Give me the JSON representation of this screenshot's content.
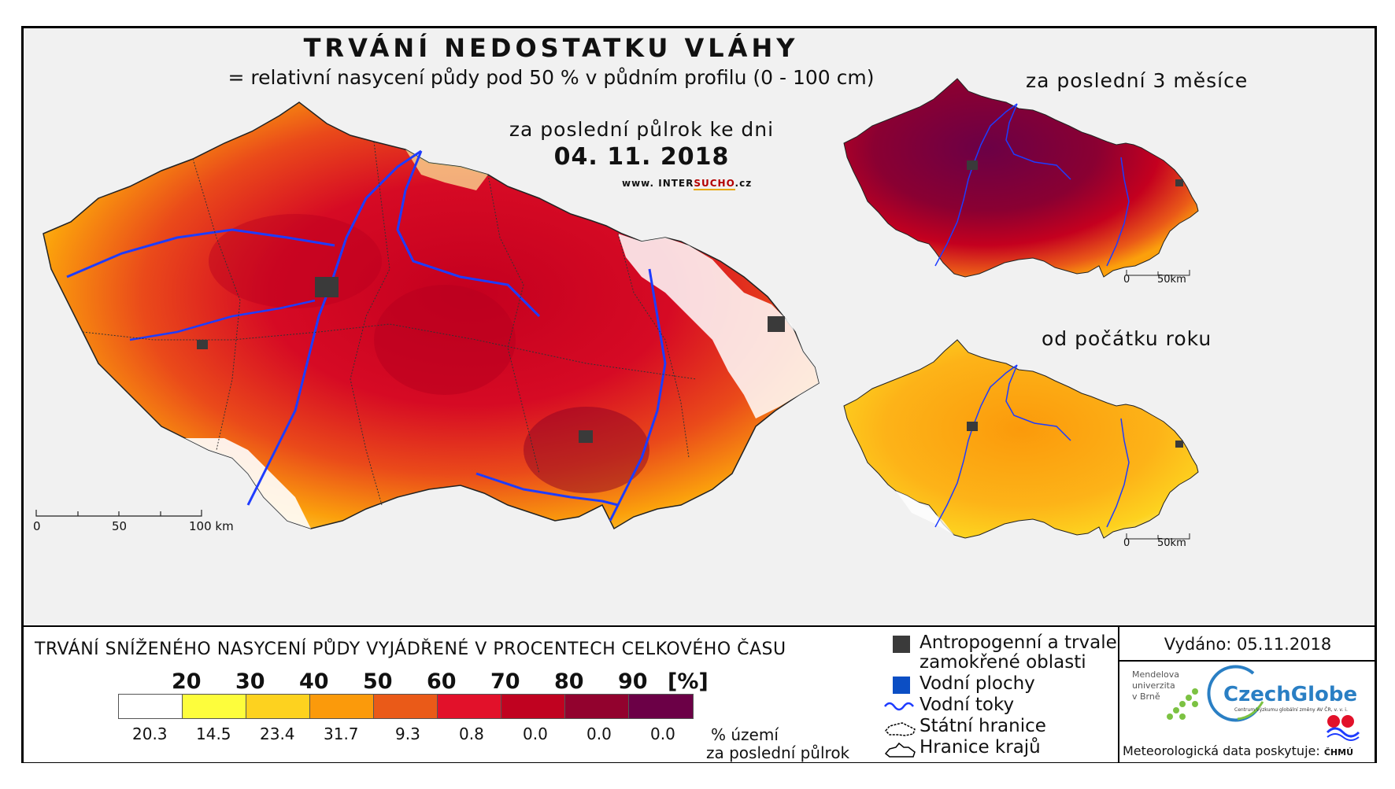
{
  "header": {
    "title": "TRVÁNÍ NEDOSTATKU VLÁHY",
    "subtitle": "= relativní nasycení půdy pod 50 % v půdním profilu (0 - 100 cm)",
    "period": "za poslední půlrok ke dni",
    "date": "04. 11. 2018",
    "website_prefix": "www. INTER",
    "website_highlight": "SUCHO",
    "website_suffix": ".cz"
  },
  "main_map": {
    "scale_labels": [
      "0",
      "50",
      "100 km"
    ]
  },
  "inset_3_months": {
    "title": "za poslední 3 měsíce",
    "scale_labels": [
      "0",
      "50km"
    ]
  },
  "inset_year": {
    "title": "od počátku roku",
    "scale_labels": [
      "0",
      "50km"
    ]
  },
  "legend": {
    "title": "TRVÁNÍ SNÍŽENÉHO NASYCENÍ PŮDY VYJÁDŘENÉ V PROCENTECH CELKOVÉHO ČASU",
    "ticks": [
      "20",
      "30",
      "40",
      "50",
      "60",
      "70",
      "80",
      "90",
      "[%]"
    ],
    "colors": [
      "#ffffff",
      "#fdfd3c",
      "#fdd21f",
      "#fb9a0b",
      "#ea5a18",
      "#e2112a",
      "#c00220",
      "#92022e",
      "#6b0046"
    ],
    "shares": [
      "20.3",
      "14.5",
      "23.4",
      "31.7",
      "9.3",
      "0.8",
      "0.0",
      "0.0",
      "0.0"
    ],
    "area_note_line1": "% území",
    "area_note_line2": "za poslední půlrok"
  },
  "map_key": {
    "items": [
      {
        "label": "Antropogenní a trvale zamokřené oblasti",
        "color": "#3a3a3a",
        "icon": "square-icon"
      },
      {
        "label": "Vodní plochy",
        "color": "#0b4ec4",
        "icon": "square-icon"
      },
      {
        "label": "Vodní toky",
        "color": "#1e3cff",
        "icon": "wave-line-icon"
      },
      {
        "label": "Státní hranice",
        "color": "#000000",
        "icon": "border-outline-icon"
      },
      {
        "label": "Hranice krajů",
        "color": "#000000",
        "icon": "border-outline-icon"
      }
    ],
    "item1_line1": "Antropogenní a trvale",
    "item1_line2": "zamokřené oblasti"
  },
  "credits": {
    "issued": "Vydáno: 05.11.2018",
    "mendel_line1": "Mendelova",
    "mendel_line2": "univerzita",
    "mendel_line3": "v Brně",
    "czechglobe": "CzechGlobe",
    "czechglobe_sub": "Centrum výzkumu globální změny AV ČR, v. v. i.",
    "meteo": "Meteorologická data poskytuje:",
    "chmu": "ČHMÚ"
  }
}
